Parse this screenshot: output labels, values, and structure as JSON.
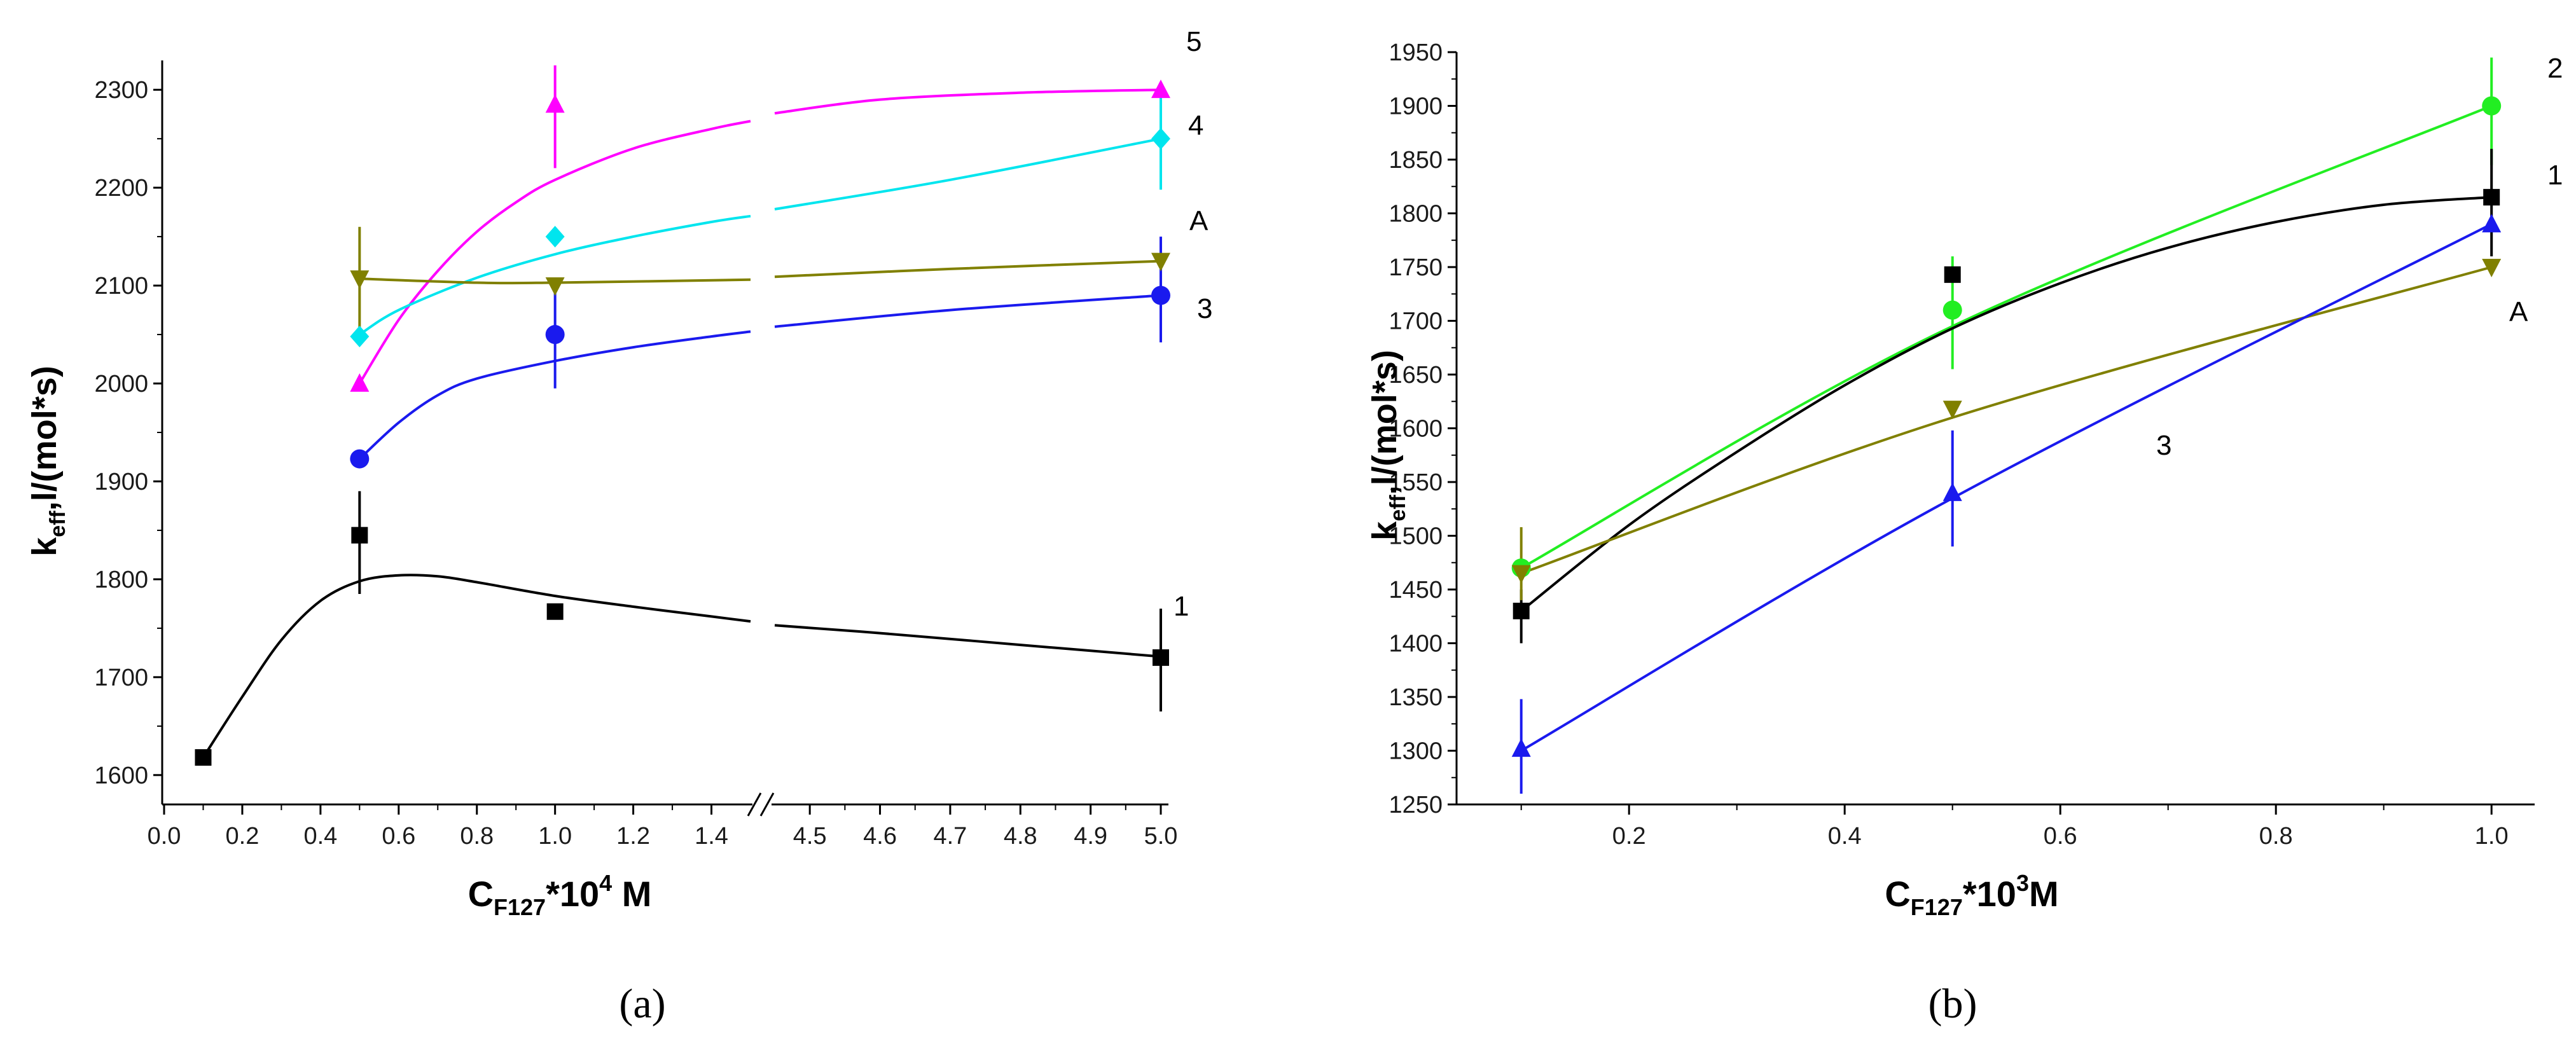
{
  "colors": {
    "black": "#000000",
    "magenta": "#ff00ff",
    "cyan": "#00e5ee",
    "blue": "#1a1aee",
    "olive": "#808000",
    "green": "#22ee22"
  },
  "chart_data": [
    {
      "id": "a",
      "type": "line",
      "panel_caption": "(a)",
      "xlabel": {
        "main": "C",
        "sub": "F127",
        "rest": "*10",
        "sup": "4",
        "unit": " M"
      },
      "ylabel": {
        "main": "k",
        "sub": "eff",
        "rest": ",l/(mol*s)"
      },
      "broken_axis": true,
      "x_segments": [
        {
          "range": [
            0.0,
            1.5
          ],
          "ticks": [
            0.0,
            0.2,
            0.4,
            0.6,
            0.8,
            1.0,
            1.2,
            1.4
          ],
          "tick_labels": [
            "0.0",
            "0.2",
            "0.4",
            "0.6",
            "0.8",
            "1.0",
            "1.2",
            "1.4"
          ]
        },
        {
          "range": [
            4.45,
            5.0
          ],
          "ticks": [
            4.5,
            4.6,
            4.7,
            4.8,
            4.9,
            5.0
          ],
          "tick_labels": [
            "4.5",
            "4.6",
            "4.7",
            "4.8",
            "4.9",
            "5.0"
          ]
        }
      ],
      "ylim": [
        1570,
        2330
      ],
      "yticks": [
        1600,
        1700,
        1800,
        1900,
        2000,
        2100,
        2200,
        2300
      ],
      "series": [
        {
          "name": "1",
          "label": "1",
          "color_key": "black",
          "marker": "square",
          "points": [
            [
              0.1,
              1618
            ],
            [
              0.5,
              1845
            ],
            [
              1.0,
              1767
            ],
            [
              5.0,
              1720
            ]
          ],
          "errors": [
            [
              0.5,
              1785,
              1890
            ],
            [
              5.0,
              1665,
              1770
            ]
          ],
          "fit": [
            [
              0.1,
              1618
            ],
            [
              0.2,
              1680
            ],
            [
              0.3,
              1738
            ],
            [
              0.4,
              1778
            ],
            [
              0.5,
              1798
            ],
            [
              0.6,
              1804
            ],
            [
              0.7,
              1803
            ],
            [
              0.8,
              1797
            ],
            [
              1.0,
              1783
            ],
            [
              1.2,
              1772
            ],
            [
              1.4,
              1762
            ],
            [
              1.5,
              1757
            ],
            [
              4.45,
              1753
            ],
            [
              4.6,
              1745
            ],
            [
              4.8,
              1733
            ],
            [
              5.0,
              1721
            ]
          ]
        },
        {
          "name": "5",
          "label": "5",
          "color_key": "magenta",
          "marker": "triangle-up",
          "points": [
            [
              0.5,
              2000
            ],
            [
              1.0,
              2285
            ],
            [
              5.0,
              2300
            ]
          ],
          "errors": [
            [
              1.0,
              2220,
              2325
            ]
          ],
          "fit": [
            [
              0.5,
              2000
            ],
            [
              0.6,
              2065
            ],
            [
              0.7,
              2115
            ],
            [
              0.8,
              2155
            ],
            [
              0.9,
              2185
            ],
            [
              1.0,
              2208
            ],
            [
              1.2,
              2240
            ],
            [
              1.4,
              2260
            ],
            [
              1.5,
              2268
            ],
            [
              4.45,
              2276
            ],
            [
              4.6,
              2290
            ],
            [
              4.8,
              2297
            ],
            [
              5.0,
              2300
            ]
          ]
        },
        {
          "name": "4",
          "label": "4",
          "color_key": "cyan",
          "marker": "diamond",
          "points": [
            [
              0.5,
              2048
            ],
            [
              1.0,
              2150
            ],
            [
              5.0,
              2250
            ]
          ],
          "errors": [
            [
              5.0,
              2198,
              2300
            ]
          ],
          "fit": [
            [
              0.5,
              2050
            ],
            [
              0.6,
              2075
            ],
            [
              0.8,
              2108
            ],
            [
              1.0,
              2132
            ],
            [
              1.2,
              2150
            ],
            [
              1.4,
              2165
            ],
            [
              1.5,
              2171
            ],
            [
              4.45,
              2178
            ],
            [
              4.7,
              2208
            ],
            [
              5.0,
              2250
            ]
          ]
        },
        {
          "name": "A",
          "label": "A",
          "color_key": "olive",
          "marker": "triangle-down",
          "points": [
            [
              0.5,
              2107
            ],
            [
              1.0,
              2100
            ],
            [
              5.0,
              2125
            ]
          ],
          "errors": [
            [
              0.5,
              2050,
              2160
            ]
          ],
          "fit": [
            [
              0.5,
              2107
            ],
            [
              0.8,
              2103
            ],
            [
              1.0,
              2103
            ],
            [
              1.5,
              2106
            ],
            [
              4.45,
              2109
            ],
            [
              4.7,
              2117
            ],
            [
              5.0,
              2125
            ]
          ]
        },
        {
          "name": "3",
          "label": "3",
          "color_key": "blue",
          "marker": "circle",
          "points": [
            [
              0.5,
              1923
            ],
            [
              1.0,
              2050
            ],
            [
              5.0,
              2090
            ]
          ],
          "errors": [
            [
              1.0,
              1995,
              2100
            ],
            [
              5.0,
              2042,
              2150
            ]
          ],
          "fit": [
            [
              0.5,
              1923
            ],
            [
              0.6,
              1960
            ],
            [
              0.7,
              1988
            ],
            [
              0.8,
              2005
            ],
            [
              1.0,
              2023
            ],
            [
              1.2,
              2037
            ],
            [
              1.4,
              2048
            ],
            [
              1.5,
              2053
            ],
            [
              4.45,
              2058
            ],
            [
              4.7,
              2075
            ],
            [
              5.0,
              2090
            ]
          ]
        }
      ]
    },
    {
      "id": "b",
      "type": "line",
      "panel_caption": "(b)",
      "xlabel": {
        "main": "C",
        "sub": "F127",
        "rest": "*10",
        "sup": "3",
        "unit": "M"
      },
      "ylabel": {
        "main": "k",
        "sub": "eff",
        "rest": ",l/(mol*s)"
      },
      "broken_axis": false,
      "xlim": [
        0.04,
        1.04
      ],
      "xticks": [
        0.2,
        0.4,
        0.6,
        0.8,
        1.0
      ],
      "xtick_labels": [
        "0.2",
        "0.4",
        "0.6",
        "0.8",
        "1.0"
      ],
      "ylim": [
        1250,
        1950
      ],
      "yticks": [
        1250,
        1300,
        1350,
        1400,
        1450,
        1500,
        1550,
        1600,
        1650,
        1700,
        1750,
        1800,
        1850,
        1900,
        1950
      ],
      "series": [
        {
          "name": "2",
          "label": "2",
          "color_key": "green",
          "marker": "circle",
          "points": [
            [
              0.1,
              1470
            ],
            [
              0.5,
              1710
            ],
            [
              1.0,
              1900
            ]
          ],
          "errors": [
            [
              0.5,
              1655,
              1760
            ],
            [
              1.0,
              1845,
              1945
            ]
          ],
          "fit": [
            [
              0.1,
              1470
            ],
            [
              0.5,
              1695
            ],
            [
              1.0,
              1900
            ]
          ]
        },
        {
          "name": "1",
          "label": "1",
          "color_key": "black",
          "marker": "square",
          "points": [
            [
              0.1,
              1430
            ],
            [
              0.5,
              1743
            ],
            [
              1.0,
              1815
            ]
          ],
          "errors": [
            [
              0.1,
              1400,
              1450
            ],
            [
              1.0,
              1760,
              1860
            ]
          ],
          "fit": [
            [
              0.1,
              1430
            ],
            [
              0.2,
              1510
            ],
            [
              0.3,
              1578
            ],
            [
              0.4,
              1640
            ],
            [
              0.5,
              1693
            ],
            [
              0.6,
              1735
            ],
            [
              0.7,
              1768
            ],
            [
              0.8,
              1792
            ],
            [
              0.9,
              1808
            ],
            [
              1.0,
              1815
            ]
          ]
        },
        {
          "name": "A",
          "label": "A",
          "color_key": "olive",
          "marker": "triangle-down",
          "points": [
            [
              0.1,
              1465
            ],
            [
              0.5,
              1618
            ],
            [
              1.0,
              1750
            ]
          ],
          "errors": [
            [
              0.1,
              1440,
              1508
            ]
          ],
          "fit": [
            [
              0.1,
              1465
            ],
            [
              0.5,
              1610
            ],
            [
              1.0,
              1750
            ]
          ]
        },
        {
          "name": "3",
          "label": "3",
          "color_key": "blue",
          "marker": "triangle-up",
          "points": [
            [
              0.1,
              1302
            ],
            [
              0.5,
              1540
            ],
            [
              1.0,
              1790
            ]
          ],
          "errors": [
            [
              0.1,
              1260,
              1348
            ],
            [
              0.5,
              1490,
              1598
            ]
          ],
          "fit": [
            [
              0.1,
              1300
            ],
            [
              0.5,
              1535
            ],
            [
              1.0,
              1790
            ]
          ]
        }
      ]
    }
  ]
}
